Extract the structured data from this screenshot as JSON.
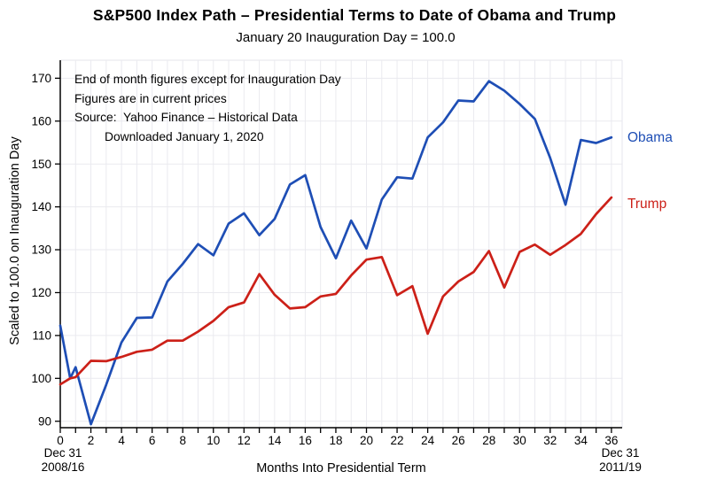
{
  "chart_data": {
    "type": "line",
    "title": "S&P500 Index Path – Presidential Terms to Date of Obama and Trump",
    "subtitle": "January 20 Inauguration Day = 100.0",
    "xlabel": "Months Into Presidential Term",
    "ylabel": "Scaled to 100.0 on Inauguration Day",
    "annotation": [
      "End of month figures except for Inauguration Day",
      "Figures are in current prices",
      "Source:  Yahoo Finance – Historical Data",
      "Downloaded January 1, 2020"
    ],
    "corner_note_left": [
      "Dec 31",
      "2008/16"
    ],
    "corner_note_right": [
      "Dec 31",
      "2011/19"
    ],
    "xlim": [
      0,
      36.7
    ],
    "ylim": [
      88.5,
      174.2
    ],
    "grid": true,
    "x_ticks_labeled": [
      0,
      2,
      4,
      6,
      8,
      10,
      12,
      14,
      16,
      18,
      20,
      22,
      24,
      26,
      28,
      30,
      32,
      34,
      36
    ],
    "y_ticks": [
      90,
      100,
      110,
      120,
      130,
      140,
      150,
      160,
      170
    ],
    "x": [
      0,
      0.65,
      1,
      2,
      3,
      4,
      5,
      6,
      7,
      8,
      9,
      10,
      11,
      12,
      13,
      14,
      15,
      16,
      17,
      18,
      19,
      20,
      21,
      22,
      23,
      24,
      25,
      26,
      27,
      28,
      29,
      30,
      31,
      32,
      33,
      34,
      35,
      36
    ],
    "series": [
      {
        "name": "Obama",
        "color": "#1E4EB5",
        "values": [
          112.3,
          100.0,
          102.6,
          89.3,
          98.5,
          108.4,
          114.1,
          114.2,
          122.6,
          126.7,
          131.3,
          128.7,
          136.1,
          138.5,
          133.4,
          137.2,
          145.2,
          147.4,
          135.3,
          128.0,
          136.8,
          130.3,
          141.7,
          146.9,
          146.6,
          156.2,
          159.7,
          164.8,
          164.6,
          169.3,
          167.1,
          164.0,
          160.5,
          151.4,
          140.5,
          155.6,
          154.9,
          156.2
        ]
      },
      {
        "name": "Trump",
        "color": "#CC2018",
        "values": [
          98.6,
          100.0,
          100.3,
          104.1,
          104.0,
          105.0,
          106.2,
          106.7,
          108.8,
          108.8,
          110.9,
          113.4,
          116.6,
          117.7,
          124.3,
          119.5,
          116.3,
          116.6,
          119.1,
          119.7,
          124.0,
          127.7,
          128.3,
          119.4,
          121.5,
          110.4,
          119.1,
          122.6,
          124.8,
          129.7,
          121.2,
          129.5,
          131.2,
          128.8,
          131.1,
          133.7,
          138.3,
          142.2
        ]
      }
    ],
    "legend_position": "right-of-line-ends",
    "colors": {
      "obama_line": "#1E4EB5",
      "trump_line": "#CC2018",
      "gridline": "#EAEAEF",
      "axis": "#000000",
      "background": "#FFFFFF"
    }
  }
}
